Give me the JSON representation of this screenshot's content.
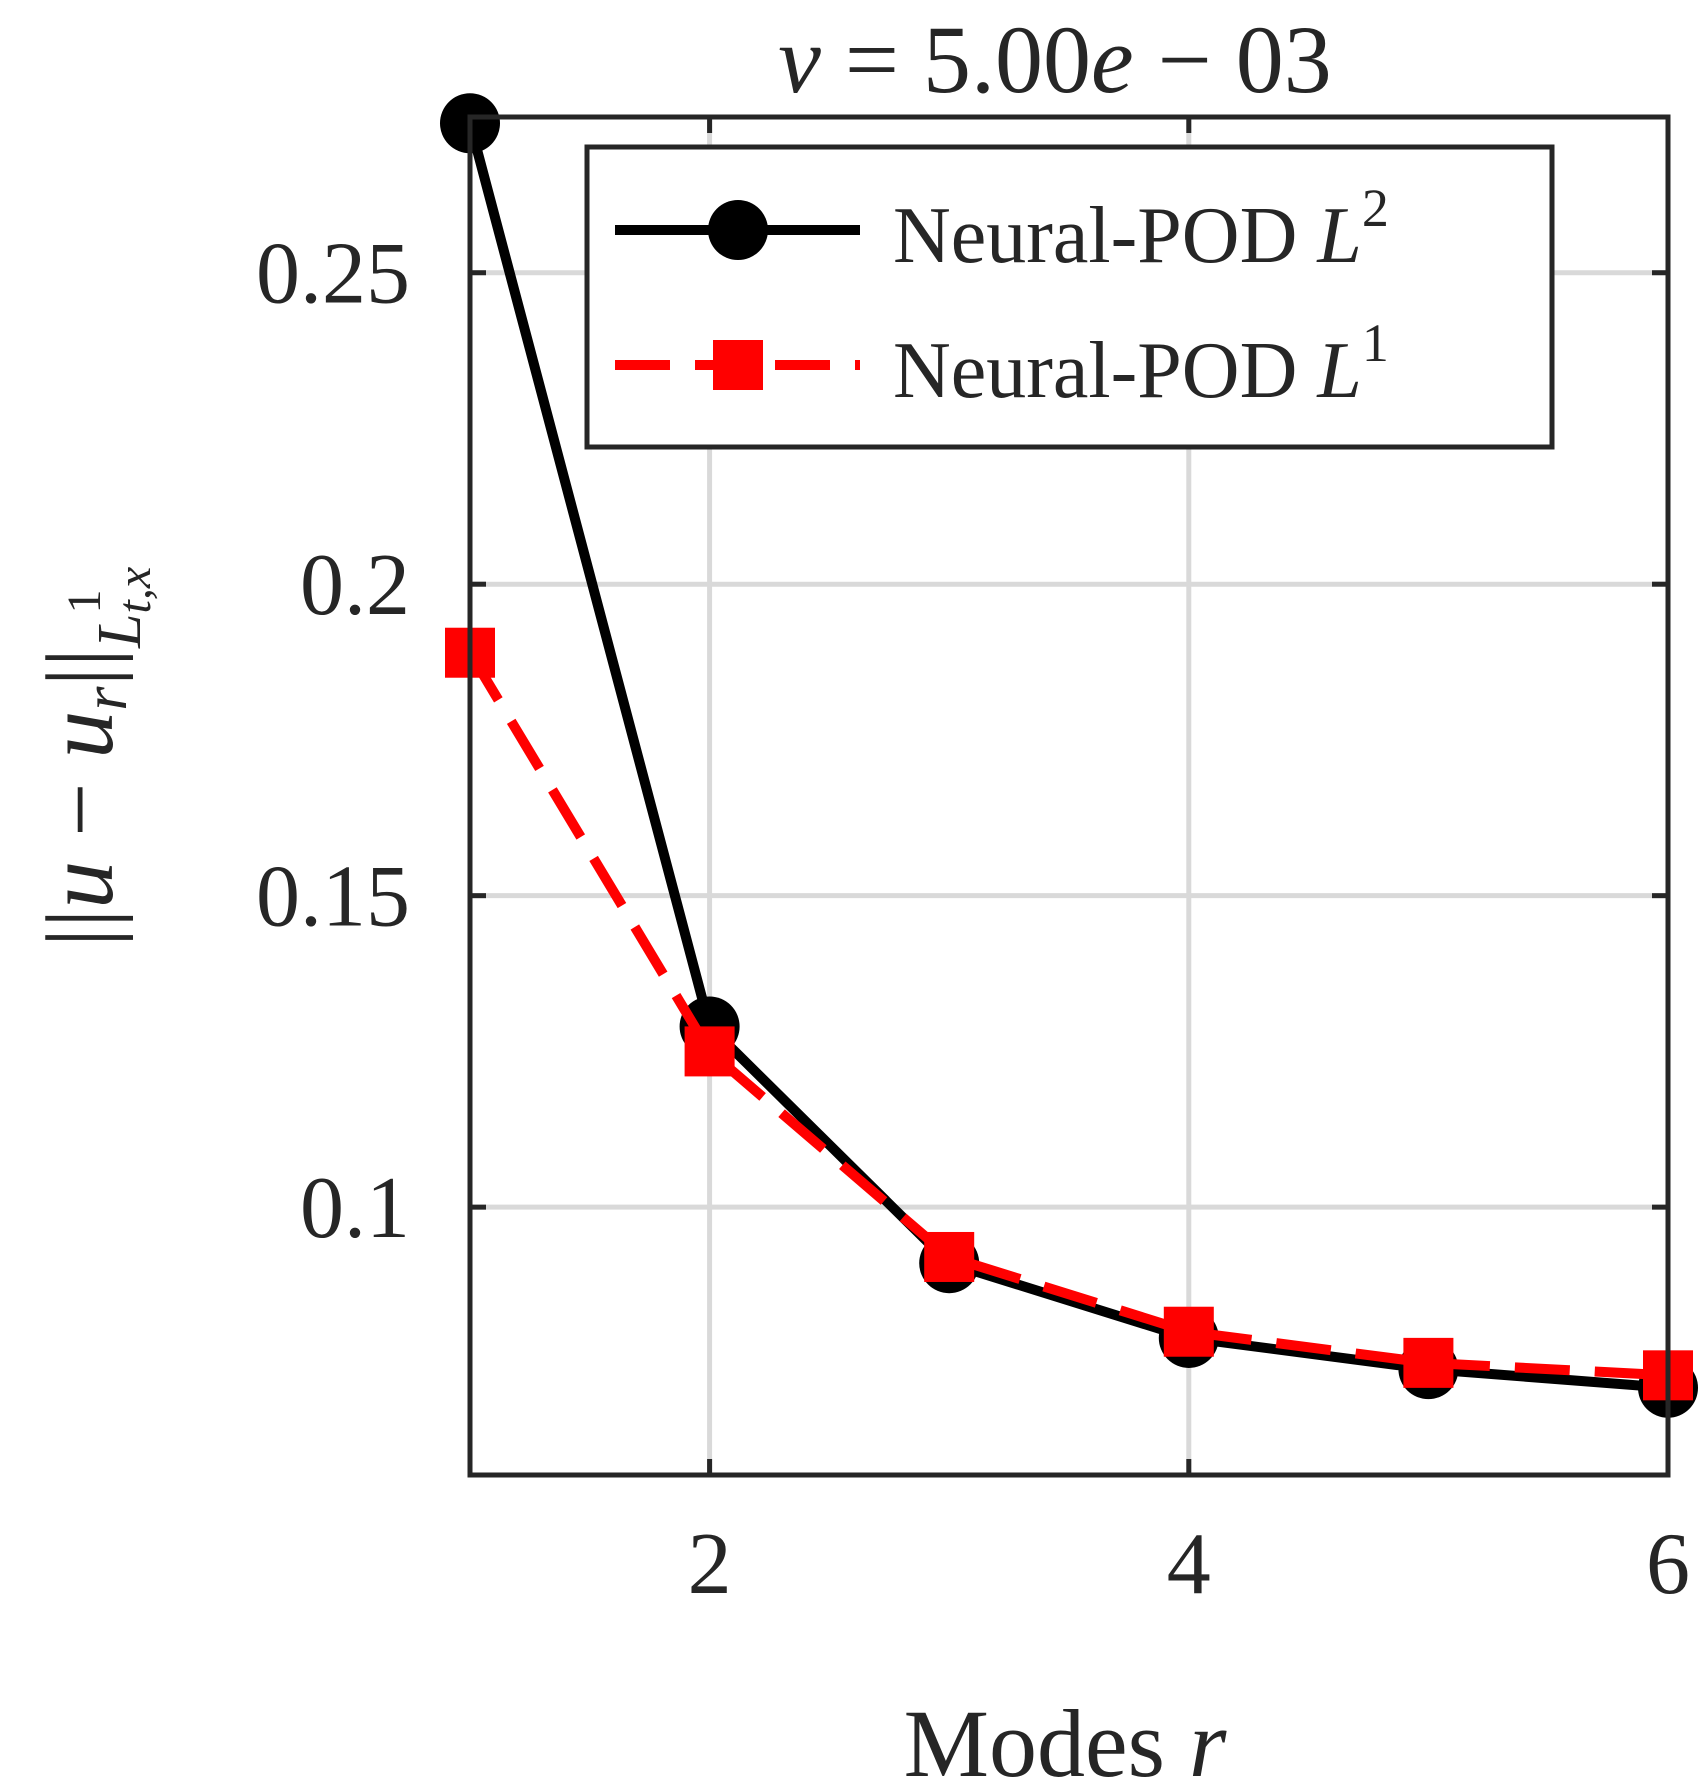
{
  "chart_data": {
    "type": "line",
    "title": "ν = 5.00e − 03",
    "title_parts": {
      "var": "ν",
      "eq": " = 5.00",
      "e": "e",
      "rest": " − 03"
    },
    "xlabel": "Modes r",
    "xlabel_parts": {
      "text": "Modes ",
      "var": "r"
    },
    "ylabel": "||u − u_r||_{L^1_{t,x}}",
    "xlim": [
      1,
      6
    ],
    "ylim": [
      0.057,
      0.275
    ],
    "xticks": [
      2,
      4,
      6
    ],
    "xtick_labels": [
      "2",
      "4",
      "6"
    ],
    "yticks": [
      0.1,
      0.15,
      0.2,
      0.25
    ],
    "ytick_labels": [
      "0.1",
      "0.15",
      "0.2",
      "0.25"
    ],
    "grid": true,
    "legend_position": "top-right",
    "series": [
      {
        "name": "Neural-POD L²",
        "label_text": "Neural-POD ",
        "label_math": "L",
        "label_sup": "2",
        "color": "#000000",
        "line_style": "solid",
        "marker": "circle",
        "x": [
          1,
          2,
          3,
          4,
          5,
          6
        ],
        "y": [
          0.274,
          0.129,
          0.091,
          0.079,
          0.074,
          0.071
        ]
      },
      {
        "name": "Neural-POD L¹",
        "label_text": "Neural-POD ",
        "label_math": "L",
        "label_sup": "1",
        "color": "#ff0000",
        "line_style": "dashed",
        "marker": "square",
        "x": [
          1,
          2,
          3,
          4,
          5,
          6
        ],
        "y": [
          0.189,
          0.125,
          0.092,
          0.08,
          0.075,
          0.073
        ]
      }
    ]
  }
}
